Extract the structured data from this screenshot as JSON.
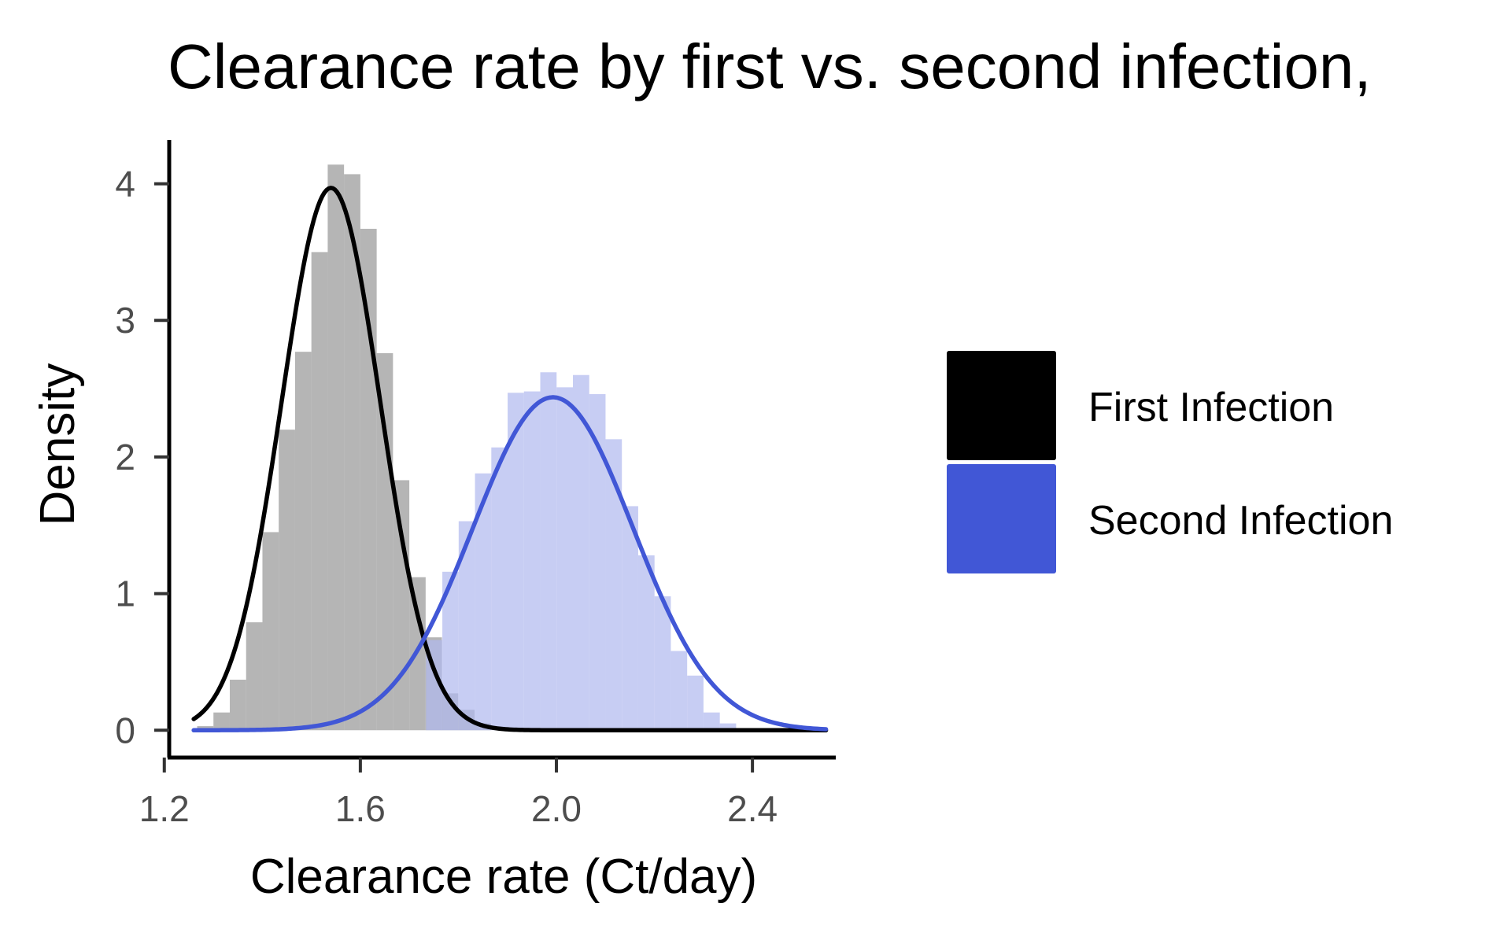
{
  "chart_data": {
    "type": "histogram",
    "title": "Clearance rate by first vs. second infection,",
    "xlabel": "Clearance rate (Ct/day)",
    "ylabel": "Density",
    "xlim": [
      1.21,
      2.57
    ],
    "ylim": [
      -0.2,
      4.32
    ],
    "x_ticks": [
      1.2,
      1.6,
      2.0,
      2.4
    ],
    "x_tick_labels": [
      "1.2",
      "1.6",
      "2.0",
      "2.4"
    ],
    "y_ticks": [
      0,
      1,
      2,
      3,
      4
    ],
    "y_tick_labels": [
      "0",
      "1",
      "2",
      "3",
      "4"
    ],
    "grid": false,
    "legend_position": "right",
    "bin_width": 0.0333,
    "series": [
      {
        "name": "First Infection",
        "color": "#000000",
        "hist_color": "#999999",
        "bins_start": 1.267,
        "hist": [
          0.03,
          0.13,
          0.37,
          0.79,
          1.45,
          2.2,
          2.77,
          3.5,
          4.14,
          4.07,
          3.67,
          2.76,
          1.83,
          1.12,
          0.68,
          0.27,
          0.15,
          0.05
        ],
        "curve": {
          "mean": 1.54,
          "sd": 0.1005
        }
      },
      {
        "name": "Second Infection",
        "color": "#4157d6",
        "hist_color": "#b1baee",
        "bins_start": 1.734,
        "hist": [
          0.66,
          1.16,
          1.53,
          1.88,
          2.07,
          2.47,
          2.48,
          2.62,
          2.51,
          2.6,
          2.46,
          2.13,
          1.64,
          1.28,
          0.98,
          0.58,
          0.4,
          0.13,
          0.05,
          0.01
        ],
        "curve": {
          "mean": 1.993,
          "sd": 0.1637
        }
      }
    ]
  }
}
